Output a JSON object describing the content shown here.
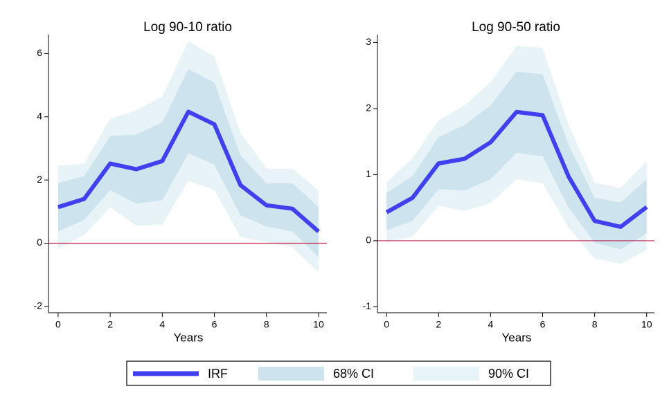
{
  "chart_data": [
    {
      "type": "line",
      "title": "Log 90-10 ratio",
      "x_label": "Years",
      "x": [
        0,
        1,
        2,
        3,
        4,
        5,
        6,
        7,
        8,
        9,
        10
      ],
      "xlim": [
        -0.37,
        10.32
      ],
      "xticks": [
        0,
        2,
        4,
        6,
        8,
        10
      ],
      "ylim": [
        -2.2,
        6.6
      ],
      "yticks": [
        -2,
        0,
        2,
        4,
        6
      ],
      "hline": 0,
      "hline_color": "#c0204a",
      "series": [
        {
          "name": "IRF",
          "color": "#4040ee",
          "values": [
            1.14,
            1.4,
            2.52,
            2.34,
            2.6,
            4.16,
            3.76,
            1.84,
            1.2,
            1.09,
            0.37
          ]
        },
        {
          "name": "68% CI",
          "color": "#cde4ee",
          "upper": [
            1.9,
            2.12,
            3.39,
            3.44,
            3.83,
            5.51,
            5.08,
            2.78,
            1.9,
            1.9,
            1.14
          ],
          "lower": [
            0.37,
            0.74,
            1.68,
            1.25,
            1.36,
            2.84,
            2.49,
            0.88,
            0.53,
            0.37,
            -0.44
          ]
        },
        {
          "name": "90% CI",
          "color": "#e8f3f7",
          "upper": [
            2.45,
            2.52,
            3.94,
            4.2,
            4.64,
            6.39,
            5.91,
            3.5,
            2.36,
            2.36,
            1.66
          ],
          "lower": [
            -0.18,
            0.26,
            1.14,
            0.55,
            0.59,
            1.97,
            1.68,
            0.2,
            0.04,
            -0.13,
            -0.92
          ]
        }
      ]
    },
    {
      "type": "line",
      "title": "Log 90-50 ratio",
      "x_label": "Years",
      "x": [
        0,
        1,
        2,
        3,
        4,
        5,
        6,
        7,
        8,
        9,
        10
      ],
      "xlim": [
        -0.35,
        10.3
      ],
      "xticks": [
        0,
        2,
        4,
        6,
        8,
        10
      ],
      "ylim": [
        -1.09,
        3.12
      ],
      "yticks": [
        -1,
        0,
        1,
        2,
        3
      ],
      "hline": 0,
      "hline_color": "#c0204a",
      "series": [
        {
          "name": "IRF",
          "color": "#4040ee",
          "values": [
            0.43,
            0.65,
            1.17,
            1.24,
            1.49,
            1.95,
            1.9,
            0.97,
            0.3,
            0.21,
            0.51
          ]
        },
        {
          "name": "68% CI",
          "color": "#cde4ee",
          "upper": [
            0.72,
            0.98,
            1.57,
            1.75,
            2.05,
            2.56,
            2.52,
            1.45,
            0.65,
            0.58,
            0.93
          ],
          "lower": [
            0.16,
            0.3,
            0.78,
            0.76,
            0.93,
            1.33,
            1.28,
            0.5,
            -0.03,
            -0.13,
            0.11
          ]
        },
        {
          "name": "90% CI",
          "color": "#e8f3f7",
          "upper": [
            0.88,
            1.25,
            1.82,
            2.05,
            2.4,
            2.95,
            2.92,
            1.75,
            0.88,
            0.8,
            1.2
          ],
          "lower": [
            -0.02,
            0.06,
            0.53,
            0.45,
            0.57,
            0.93,
            0.87,
            0.2,
            -0.27,
            -0.35,
            -0.14
          ]
        }
      ]
    }
  ]
}
